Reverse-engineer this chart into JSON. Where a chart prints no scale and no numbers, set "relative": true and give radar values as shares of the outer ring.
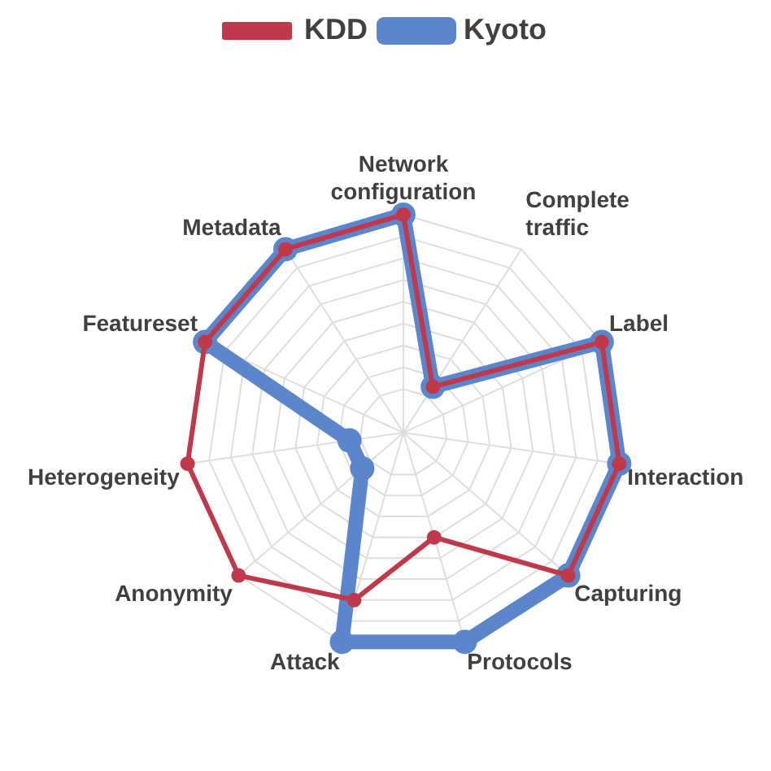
{
  "chart_data": {
    "type": "radar",
    "relative": true,
    "categories": [
      "Network configuration",
      "Complete traffic",
      "Label",
      "Interaction",
      "Capturing",
      "Protocols",
      "Attack",
      "Anonymity",
      "Heterogeneity",
      "Featureset",
      "Metadata"
    ],
    "series": [
      {
        "name": "Kyoto",
        "color": "#5b86cc",
        "values": [
          1,
          0.25,
          1,
          1,
          1,
          1,
          1,
          0.25,
          0.25,
          1,
          1
        ]
      },
      {
        "name": "KDD",
        "color": "#c0394b",
        "values": [
          1,
          0.25,
          1,
          1,
          1,
          0.5,
          0.8,
          1,
          1,
          1,
          1
        ]
      }
    ],
    "grid": true,
    "legend": "top",
    "marker": "circle",
    "line_style": "solid"
  }
}
